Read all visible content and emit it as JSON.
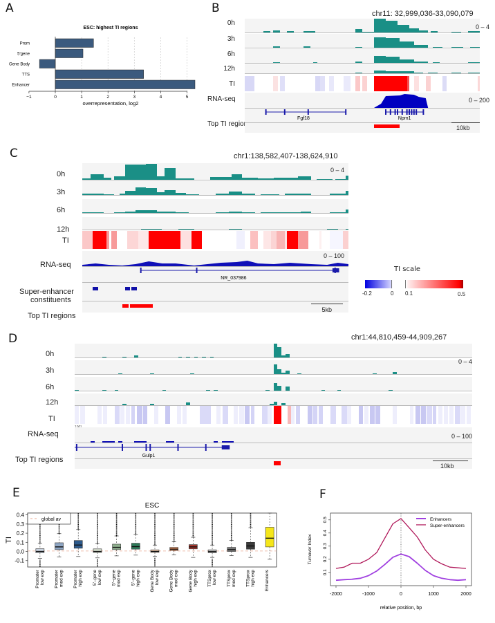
{
  "panels": {
    "A": {
      "letter": "A",
      "chart_data": {
        "type": "bar",
        "orientation": "horizontal",
        "title": "ESC: highest TI regions",
        "categories": [
          "Prom",
          "5'gene",
          "Gene Body",
          "TTS",
          "Enhancer"
        ],
        "values": [
          1.45,
          1.05,
          -0.6,
          3.35,
          5.3
        ],
        "xlabel": "overrepresentation, log2",
        "ylabel": "",
        "xlim": [
          -1,
          5.3
        ],
        "xticks": [
          -1,
          0,
          1,
          2,
          3,
          4,
          5
        ],
        "grid": "vertical dotted",
        "bar_color": "#3b5a7e"
      }
    },
    "B": {
      "letter": "B",
      "locus": "chr11: 32,999,036-33,090,079",
      "tracks": [
        "0h",
        "3h",
        "6h",
        "12h",
        "TI",
        "RNA-seq",
        "Top TI regions"
      ],
      "signal_range": "0 – 4",
      "rna_range": "0 – 200",
      "genes": [
        "Fgf18",
        "Npm1"
      ],
      "scale_bar": "10kb"
    },
    "C": {
      "letter": "C",
      "locus": "chr1:138,582,407-138,624,910",
      "tracks": [
        "0h",
        "3h",
        "6h",
        "12h",
        "TI",
        "RNA-seq",
        "Super-enhancer",
        "constituents",
        "Top TI regions"
      ],
      "signal_range": "0 – 4",
      "rna_range": "0 – 100",
      "genes": [
        "NR_037986"
      ],
      "scale_bar": "5kb",
      "ti_scale": {
        "title": "TI scale",
        "ticks": [
          "-0.2",
          "0",
          "0.1",
          "0.5"
        ]
      }
    },
    "D": {
      "letter": "D",
      "locus": "chr1:44,810,459-44,909,267",
      "tracks": [
        "0h",
        "3h",
        "6h",
        "12h",
        "TI",
        "RNA-seq",
        "Top TI regions"
      ],
      "signal_range": "0 – 4",
      "rna_range": "0 – 100",
      "rna_small_label": "100]",
      "genes": [
        "Gulp1"
      ],
      "scale_bar": "10kb"
    },
    "E": {
      "letter": "E",
      "chart_data": {
        "type": "box",
        "title": "ESC",
        "ylabel": "TI",
        "ylim": [
          -0.17,
          0.42
        ],
        "yticks": [
          -0.1,
          0.0,
          0.1,
          0.2,
          0.3,
          0.4
        ],
        "legend": {
          "label": "global av",
          "position": "top-left",
          "line_value": 0.005
        },
        "categories": [
          {
            "line1": "Promoter",
            "line2": "low exp",
            "q1": -0.015,
            "median": 0.0,
            "q3": 0.03,
            "wlo": -0.075,
            "whi": 0.09,
            "color": "#c9d3df",
            "outliers_hi": true,
            "outliers_lo": true
          },
          {
            "line1": "Promoter",
            "line2": "mod exp",
            "q1": 0.02,
            "median": 0.05,
            "q3": 0.095,
            "wlo": -0.06,
            "whi": 0.195,
            "color": "#8ea6c4",
            "outliers_hi": true,
            "outliers_lo": false
          },
          {
            "line1": "Promoter",
            "line2": "high exp",
            "q1": 0.035,
            "median": 0.07,
            "q3": 0.12,
            "wlo": -0.055,
            "whi": 0.24,
            "color": "#2c5a8c",
            "outliers_hi": true,
            "outliers_lo": false
          },
          {
            "line1": "5'–gene",
            "line2": "low exp",
            "q1": -0.012,
            "median": 0.0,
            "q3": 0.028,
            "wlo": -0.07,
            "whi": 0.085,
            "color": "#d8e0cf",
            "outliers_hi": true,
            "outliers_lo": true
          },
          {
            "line1": "5'–gene",
            "line2": "mod exp",
            "q1": 0.02,
            "median": 0.045,
            "q3": 0.08,
            "wlo": -0.048,
            "whi": 0.17,
            "color": "#8fb08e",
            "outliers_hi": true,
            "outliers_lo": false
          },
          {
            "line1": "5'–gene",
            "line2": "high exp",
            "q1": 0.025,
            "median": 0.053,
            "q3": 0.09,
            "wlo": -0.04,
            "whi": 0.185,
            "color": "#2e7a59",
            "outliers_hi": true,
            "outliers_lo": false
          },
          {
            "line1": "Gene Body",
            "line2": "low exp",
            "q1": -0.01,
            "median": 0.0,
            "q3": 0.018,
            "wlo": -0.055,
            "whi": 0.07,
            "color": "#efc7aa",
            "outliers_hi": true,
            "outliers_lo": true
          },
          {
            "line1": "Gene Body",
            "line2": "mod exp",
            "q1": 0.01,
            "median": 0.025,
            "q3": 0.045,
            "wlo": -0.038,
            "whi": 0.105,
            "color": "#e0895a",
            "outliers_hi": true,
            "outliers_lo": false
          },
          {
            "line1": "Gene Body",
            "line2": "high exp",
            "q1": 0.028,
            "median": 0.05,
            "q3": 0.075,
            "wlo": -0.065,
            "whi": 0.155,
            "color": "#a8362c",
            "outliers_hi": true,
            "outliers_lo": false
          },
          {
            "line1": "TTSprox",
            "line2": "low exp",
            "q1": -0.015,
            "median": -0.002,
            "q3": 0.018,
            "wlo": -0.065,
            "whi": 0.07,
            "color": "#b8b8b8",
            "outliers_hi": true,
            "outliers_lo": true
          },
          {
            "line1": "TTSprox",
            "line2": "mod exp",
            "q1": 0.0,
            "median": 0.02,
            "q3": 0.045,
            "wlo": -0.045,
            "whi": 0.12,
            "color": "#7a7a7a",
            "outliers_hi": true,
            "outliers_lo": false
          },
          {
            "line1": "TTSprox",
            "line2": "high exp",
            "q1": 0.025,
            "median": 0.06,
            "q3": 0.1,
            "wlo": -0.065,
            "whi": 0.26,
            "color": "#3c3c3c",
            "outliers_hi": true,
            "outliers_lo": false
          },
          {
            "line1": "Enhancers",
            "line2": "",
            "q1": 0.05,
            "median": 0.145,
            "q3": 0.265,
            "wlo": -0.085,
            "whi": 0.42,
            "color": "#f5e61a",
            "outliers_hi": false,
            "outliers_lo": false
          }
        ]
      }
    },
    "F": {
      "letter": "F",
      "chart_data": {
        "type": "line",
        "xlabel": "relative position, bp",
        "ylabel": "Turnover Index",
        "xlim": [
          -2000,
          2000
        ],
        "ylim": [
          0.02,
          0.52
        ],
        "xticks": [
          -2000,
          -1000,
          0,
          1000,
          2000
        ],
        "yticks": [
          0.1,
          0.2,
          0.3,
          0.4,
          0.5
        ],
        "legend_position": "top-right",
        "x": [
          -2000,
          -1750,
          -1500,
          -1250,
          -1000,
          -750,
          -500,
          -250,
          0,
          250,
          500,
          750,
          1000,
          1250,
          1500,
          1750,
          2000
        ],
        "series": [
          {
            "name": "Enhancers",
            "color": "#a040e0",
            "values": [
              0.04,
              0.045,
              0.048,
              0.055,
              0.075,
              0.11,
              0.16,
              0.215,
              0.24,
              0.22,
              0.17,
              0.115,
              0.075,
              0.055,
              0.045,
              0.04,
              0.045
            ]
          },
          {
            "name": "Super-enhancers",
            "color": "#b0185a",
            "values": [
              0.13,
              0.14,
              0.17,
              0.17,
              0.2,
              0.25,
              0.36,
              0.47,
              0.51,
              0.44,
              0.37,
              0.27,
              0.2,
              0.165,
              0.14,
              0.135,
              0.13
            ]
          }
        ]
      }
    }
  }
}
